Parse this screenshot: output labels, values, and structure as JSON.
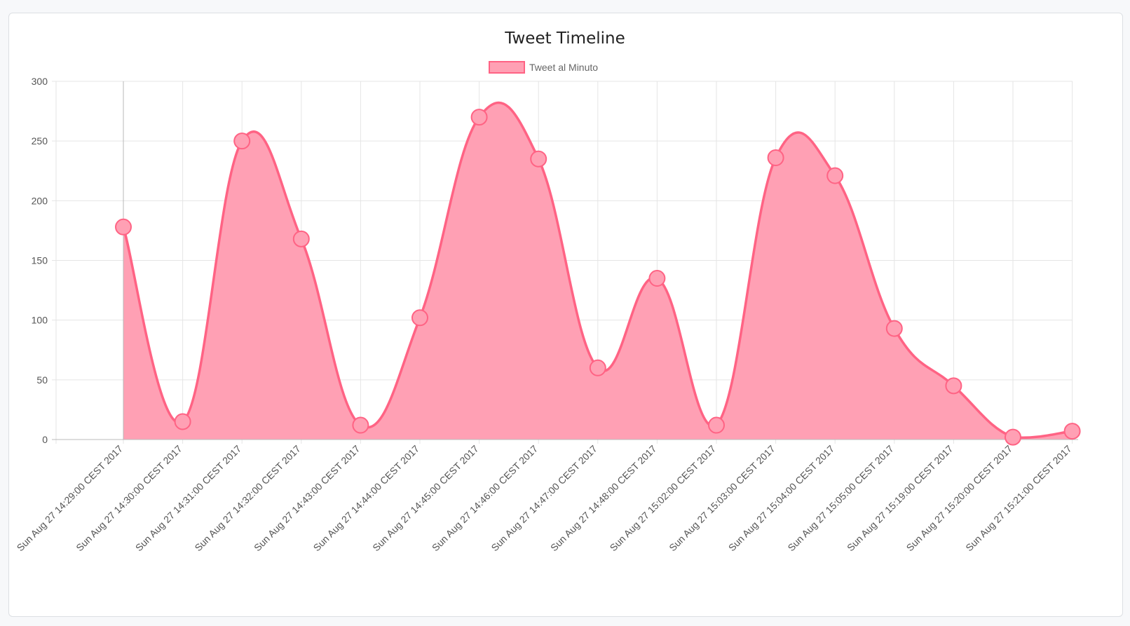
{
  "chart_data": {
    "type": "line",
    "title": "Tweet Timeline",
    "xlabel": "",
    "ylabel": "",
    "ylim": [
      0,
      300
    ],
    "yticks": [
      0,
      50,
      100,
      150,
      200,
      250,
      300
    ],
    "grid": true,
    "fill": true,
    "smooth": true,
    "legend_position": "top",
    "colors": {
      "line": "#ff6384",
      "fill": "#ffa0b4",
      "point_fill": "#ffa0b4",
      "grid": "#e5e5e5",
      "axis": "#bbbbbb"
    },
    "categories": [
      "Sun Aug 27 14:29:00 CEST 2017",
      "Sun Aug 27 14:30:00 CEST 2017",
      "Sun Aug 27 14:31:00 CEST 2017",
      "Sun Aug 27 14:32:00 CEST 2017",
      "Sun Aug 27 14:43:00 CEST 2017",
      "Sun Aug 27 14:44:00 CEST 2017",
      "Sun Aug 27 14:45:00 CEST 2017",
      "Sun Aug 27 14:46:00 CEST 2017",
      "Sun Aug 27 14:47:00 CEST 2017",
      "Sun Aug 27 14:48:00 CEST 2017",
      "Sun Aug 27 15:02:00 CEST 2017",
      "Sun Aug 27 15:03:00 CEST 2017",
      "Sun Aug 27 15:04:00 CEST 2017",
      "Sun Aug 27 15:05:00 CEST 2017",
      "Sun Aug 27 15:19:00 CEST 2017",
      "Sun Aug 27 15:20:00 CEST 2017",
      "Sun Aug 27 15:21:00 CEST 2017"
    ],
    "series": [
      {
        "name": "Tweet al Minuto",
        "values": [
          178,
          15,
          250,
          168,
          12,
          102,
          270,
          235,
          60,
          135,
          12,
          236,
          221,
          93,
          45,
          2,
          7
        ]
      }
    ]
  }
}
